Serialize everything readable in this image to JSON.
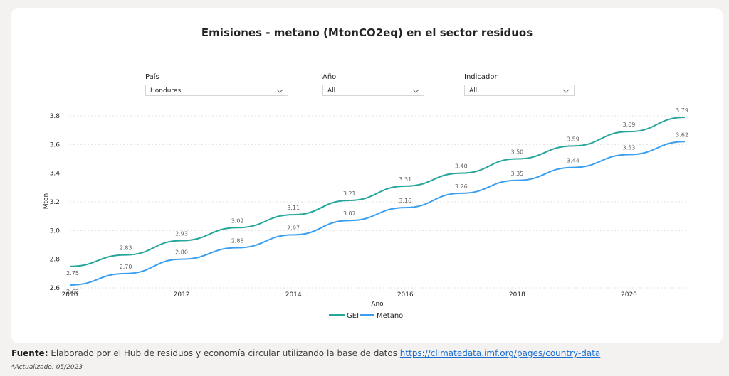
{
  "filters": [
    {
      "label": "País",
      "value": "Honduras"
    },
    {
      "label": "Año",
      "value": "All"
    },
    {
      "label": "Indicador",
      "value": "All"
    }
  ],
  "colors": {
    "gei": "#26a69a",
    "metano": "#3a9ef0"
  },
  "chart_data": {
    "type": "line",
    "title": "Emisiones - metano (MtonCO2eq) en el sector residuos",
    "xlabel": "Año",
    "ylabel": "Mton",
    "x": [
      2010,
      2011,
      2012,
      2013,
      2014,
      2015,
      2016,
      2017,
      2018,
      2019,
      2020,
      2021
    ],
    "xticks": [
      "2010",
      "2012",
      "2014",
      "2016",
      "2018",
      "2020"
    ],
    "yticks": [
      "2.6",
      "2.8",
      "3.0",
      "3.2",
      "3.4",
      "3.6",
      "3.8"
    ],
    "ylim": [
      2.6,
      3.8
    ],
    "grid": true,
    "legend_position": "bottom-center",
    "series": [
      {
        "name": "GEI",
        "values": [
          2.75,
          2.83,
          2.93,
          3.02,
          3.11,
          3.21,
          3.31,
          3.4,
          3.5,
          3.59,
          3.69,
          3.79
        ],
        "labels": [
          "2.75",
          "2.83",
          "2.93",
          "3.02",
          "3.11",
          "3.21",
          "3.31",
          "3.40",
          "3.50",
          "3.59",
          "3.69",
          "3.79"
        ]
      },
      {
        "name": "Metano",
        "values": [
          2.62,
          2.7,
          2.8,
          2.88,
          2.97,
          3.07,
          3.16,
          3.26,
          3.35,
          3.44,
          3.53,
          3.62
        ],
        "labels": [
          "2.62",
          "2.70",
          "2.80",
          "2.88",
          "2.97",
          "3.07",
          "3.16",
          "3.26",
          "3.35",
          "3.44",
          "3.53",
          "3.62"
        ]
      }
    ]
  },
  "footer": {
    "source_label": "Fuente:",
    "source_text": "Elaborado por el Hub de residuos y economía circular utilizando la base de datos",
    "link_text": "https://climatedata.imf.org/pages/country-data",
    "updated": "*Actualizado: 05/2023"
  }
}
